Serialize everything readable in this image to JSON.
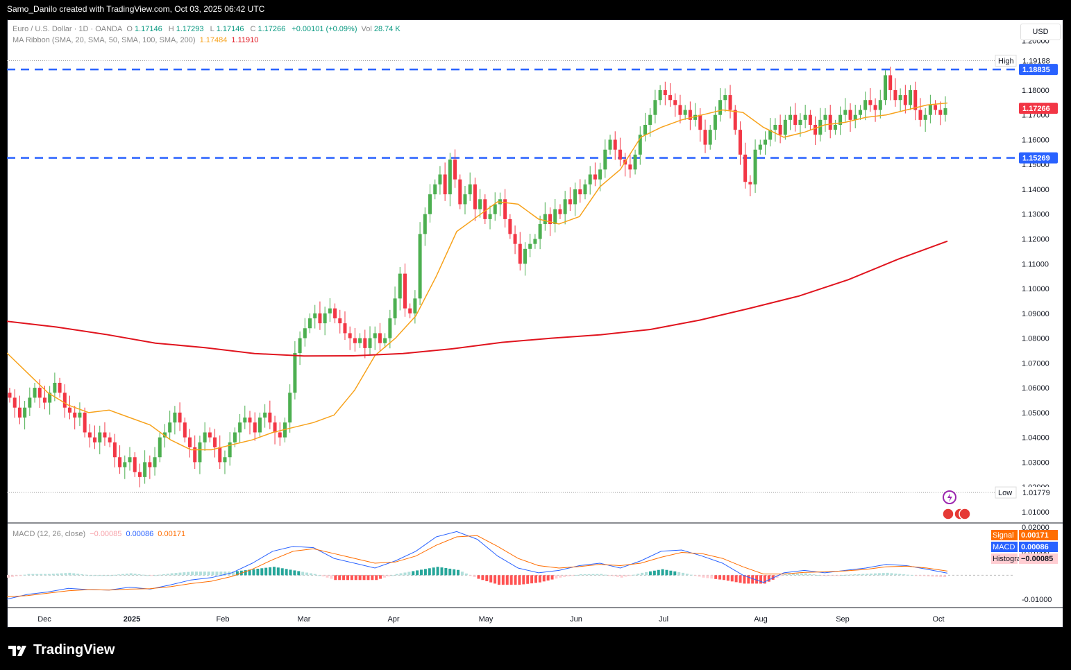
{
  "header": {
    "attribution": "Samo_Danilo created with TradingView.com, Oct 03, 2025 06:42 UTC"
  },
  "legend": {
    "symbol": "Euro / U.S. Dollar · 1D · OANDA",
    "open_label": "O",
    "open": "1.17146",
    "high_label": "H",
    "high": "1.17293",
    "low_label": "L",
    "low": "1.17146",
    "close_label": "C",
    "close": "1.17266",
    "change": "+0.00101 (+0.09%)",
    "vol_label": "Vol",
    "vol": "28.74 K",
    "ma_label": "MA Ribbon (SMA, 20, SMA, 50, SMA, 100, SMA, 200)",
    "ma1": "1.17484",
    "ma2": "1.11910"
  },
  "currency": "USD",
  "macd_legend": {
    "label": "MACD (12, 26, close)",
    "hist": "−0.00085",
    "macd": "0.00086",
    "signal": "0.00171"
  },
  "footer": {
    "brand": "TradingView"
  },
  "colors": {
    "up": "#26a69a",
    "down": "#f23645",
    "upBright": "#4caf50",
    "ma_orange": "#f7a21b",
    "ma_red": "#e0141e",
    "level": "#2962ff",
    "macd": "#2962ff",
    "signal": "#ff6d00"
  },
  "chart_data": {
    "type": "candlestick",
    "y_ticks": [
      "1.20000",
      "1.19000",
      "1.18000",
      "1.17000",
      "1.16000",
      "1.15000",
      "1.14000",
      "1.13000",
      "1.12000",
      "1.11000",
      "1.10000",
      "1.09000",
      "1.08000",
      "1.07000",
      "1.06000",
      "1.05000",
      "1.04000",
      "1.03000",
      "1.02000",
      "1.01000"
    ],
    "ylim": [
      1.0055,
      1.2085
    ],
    "x_labels": [
      "Dec",
      "2025",
      "Feb",
      "Mar",
      "Apr",
      "May",
      "Jun",
      "Jul",
      "Aug",
      "Sep",
      "Oct"
    ],
    "price_labels": [
      {
        "label": "High",
        "value": "1.19188",
        "style": "plain"
      },
      {
        "label": "",
        "value": "1.18835",
        "style": "blue"
      },
      {
        "label": "",
        "value": "1.17266",
        "style": "red"
      },
      {
        "label": "",
        "value": "1.15269",
        "style": "blue"
      },
      {
        "label": "Low",
        "value": "1.01779",
        "style": "plain"
      }
    ],
    "levels": [
      1.18835,
      1.15269
    ],
    "high": 1.19188,
    "low": 1.01779,
    "close_series": [
      1.056,
      1.052,
      1.048,
      1.052,
      1.056,
      1.06,
      1.056,
      1.054,
      1.058,
      1.062,
      1.058,
      1.052,
      1.05,
      1.048,
      1.05,
      1.042,
      1.04,
      1.038,
      1.042,
      1.04,
      1.038,
      1.032,
      1.028,
      1.03,
      1.032,
      1.026,
      1.024,
      1.03,
      1.028,
      1.032,
      1.04,
      1.042,
      1.046,
      1.05,
      1.046,
      1.04,
      1.036,
      1.03,
      1.038,
      1.042,
      1.04,
      1.036,
      1.03,
      1.032,
      1.038,
      1.042,
      1.046,
      1.048,
      1.046,
      1.042,
      1.048,
      1.05,
      1.046,
      1.042,
      1.04,
      1.046,
      1.058,
      1.074,
      1.08,
      1.084,
      1.088,
      1.09,
      1.086,
      1.09,
      1.092,
      1.088,
      1.086,
      1.082,
      1.08,
      1.078,
      1.08,
      1.076,
      1.08,
      1.082,
      1.078,
      1.08,
      1.088,
      1.096,
      1.106,
      1.092,
      1.09,
      1.096,
      1.122,
      1.13,
      1.138,
      1.142,
      1.146,
      1.138,
      1.152,
      1.144,
      1.134,
      1.138,
      1.142,
      1.132,
      1.136,
      1.128,
      1.13,
      1.134,
      1.136,
      1.128,
      1.122,
      1.118,
      1.11,
      1.116,
      1.118,
      1.12,
      1.126,
      1.13,
      1.126,
      1.132,
      1.13,
      1.136,
      1.134,
      1.14,
      1.138,
      1.142,
      1.146,
      1.144,
      1.148,
      1.156,
      1.16,
      1.156,
      1.152,
      1.15,
      1.148,
      1.154,
      1.162,
      1.166,
      1.17,
      1.176,
      1.18,
      1.178,
      1.176,
      1.174,
      1.17,
      1.172,
      1.168,
      1.17,
      1.164,
      1.158,
      1.164,
      1.17,
      1.176,
      1.178,
      1.172,
      1.164,
      1.154,
      1.143,
      1.142,
      1.156,
      1.158,
      1.16,
      1.164,
      1.166,
      1.162,
      1.168,
      1.17,
      1.166,
      1.168,
      1.17,
      1.166,
      1.162,
      1.168,
      1.17,
      1.164,
      1.166,
      1.17,
      1.172,
      1.168,
      1.17,
      1.172,
      1.176,
      1.174,
      1.172,
      1.176,
      1.186,
      1.18,
      1.176,
      1.178,
      1.174,
      1.18,
      1.172,
      1.168,
      1.17,
      1.174,
      1.172,
      1.17,
      1.1727
    ],
    "ma_orange": [
      1.074,
      1.066,
      1.058,
      1.053,
      1.05,
      1.051,
      1.048,
      1.045,
      1.039,
      1.035,
      1.035,
      1.037,
      1.039,
      1.042,
      1.044,
      1.046,
      1.049,
      1.059,
      1.073,
      1.08,
      1.089,
      1.105,
      1.123,
      1.129,
      1.135,
      1.134,
      1.128,
      1.126,
      1.129,
      1.141,
      1.148,
      1.161,
      1.165,
      1.168,
      1.17,
      1.172,
      1.171,
      1.165,
      1.161,
      1.163,
      1.166,
      1.167,
      1.169,
      1.17,
      1.172,
      1.174,
      1.1748
    ],
    "ma_red": [
      1.0868,
      1.0845,
      1.0815,
      1.078,
      1.0762,
      1.0738,
      1.0728,
      1.0729,
      1.0738,
      1.0757,
      1.0783,
      1.08,
      1.0814,
      1.0835,
      1.0873,
      1.092,
      1.097,
      1.1036,
      1.1118,
      1.1191
    ],
    "macd": {
      "zero_line": 0,
      "ylim": [
        -0.0135,
        0.0215
      ],
      "y_ticks": [
        "0.02000",
        "0.01000",
        "-0.01000"
      ],
      "macd_line": [
        -0.01,
        -0.008,
        -0.007,
        -0.0055,
        -0.006,
        -0.0062,
        -0.005,
        -0.0058,
        -0.004,
        -0.002,
        -0.001,
        0.001,
        0.005,
        0.01,
        0.012,
        0.0115,
        0.007,
        0.005,
        0.003,
        0.006,
        0.01,
        0.016,
        0.0182,
        0.015,
        0.008,
        0.003,
        0.001,
        0.002,
        0.004,
        0.005,
        0.003,
        0.006,
        0.01,
        0.0105,
        0.008,
        0.005,
        0.0,
        -0.003,
        0.001,
        0.002,
        0.001,
        0.002,
        0.003,
        0.0045,
        0.004,
        0.0025,
        0.00086
      ],
      "signal_line": [
        -0.009,
        -0.0085,
        -0.0075,
        -0.0065,
        -0.006,
        -0.0062,
        -0.0058,
        -0.0056,
        -0.0048,
        -0.0035,
        -0.0025,
        -0.0005,
        0.0025,
        0.0065,
        0.01,
        0.011,
        0.009,
        0.007,
        0.005,
        0.0055,
        0.008,
        0.0125,
        0.016,
        0.0165,
        0.012,
        0.007,
        0.004,
        0.003,
        0.0036,
        0.0045,
        0.004,
        0.005,
        0.0075,
        0.0095,
        0.009,
        0.007,
        0.0035,
        0.0005,
        0.0005,
        0.0012,
        0.0014,
        0.0018,
        0.0024,
        0.0035,
        0.0038,
        0.003,
        0.00171
      ]
    }
  }
}
